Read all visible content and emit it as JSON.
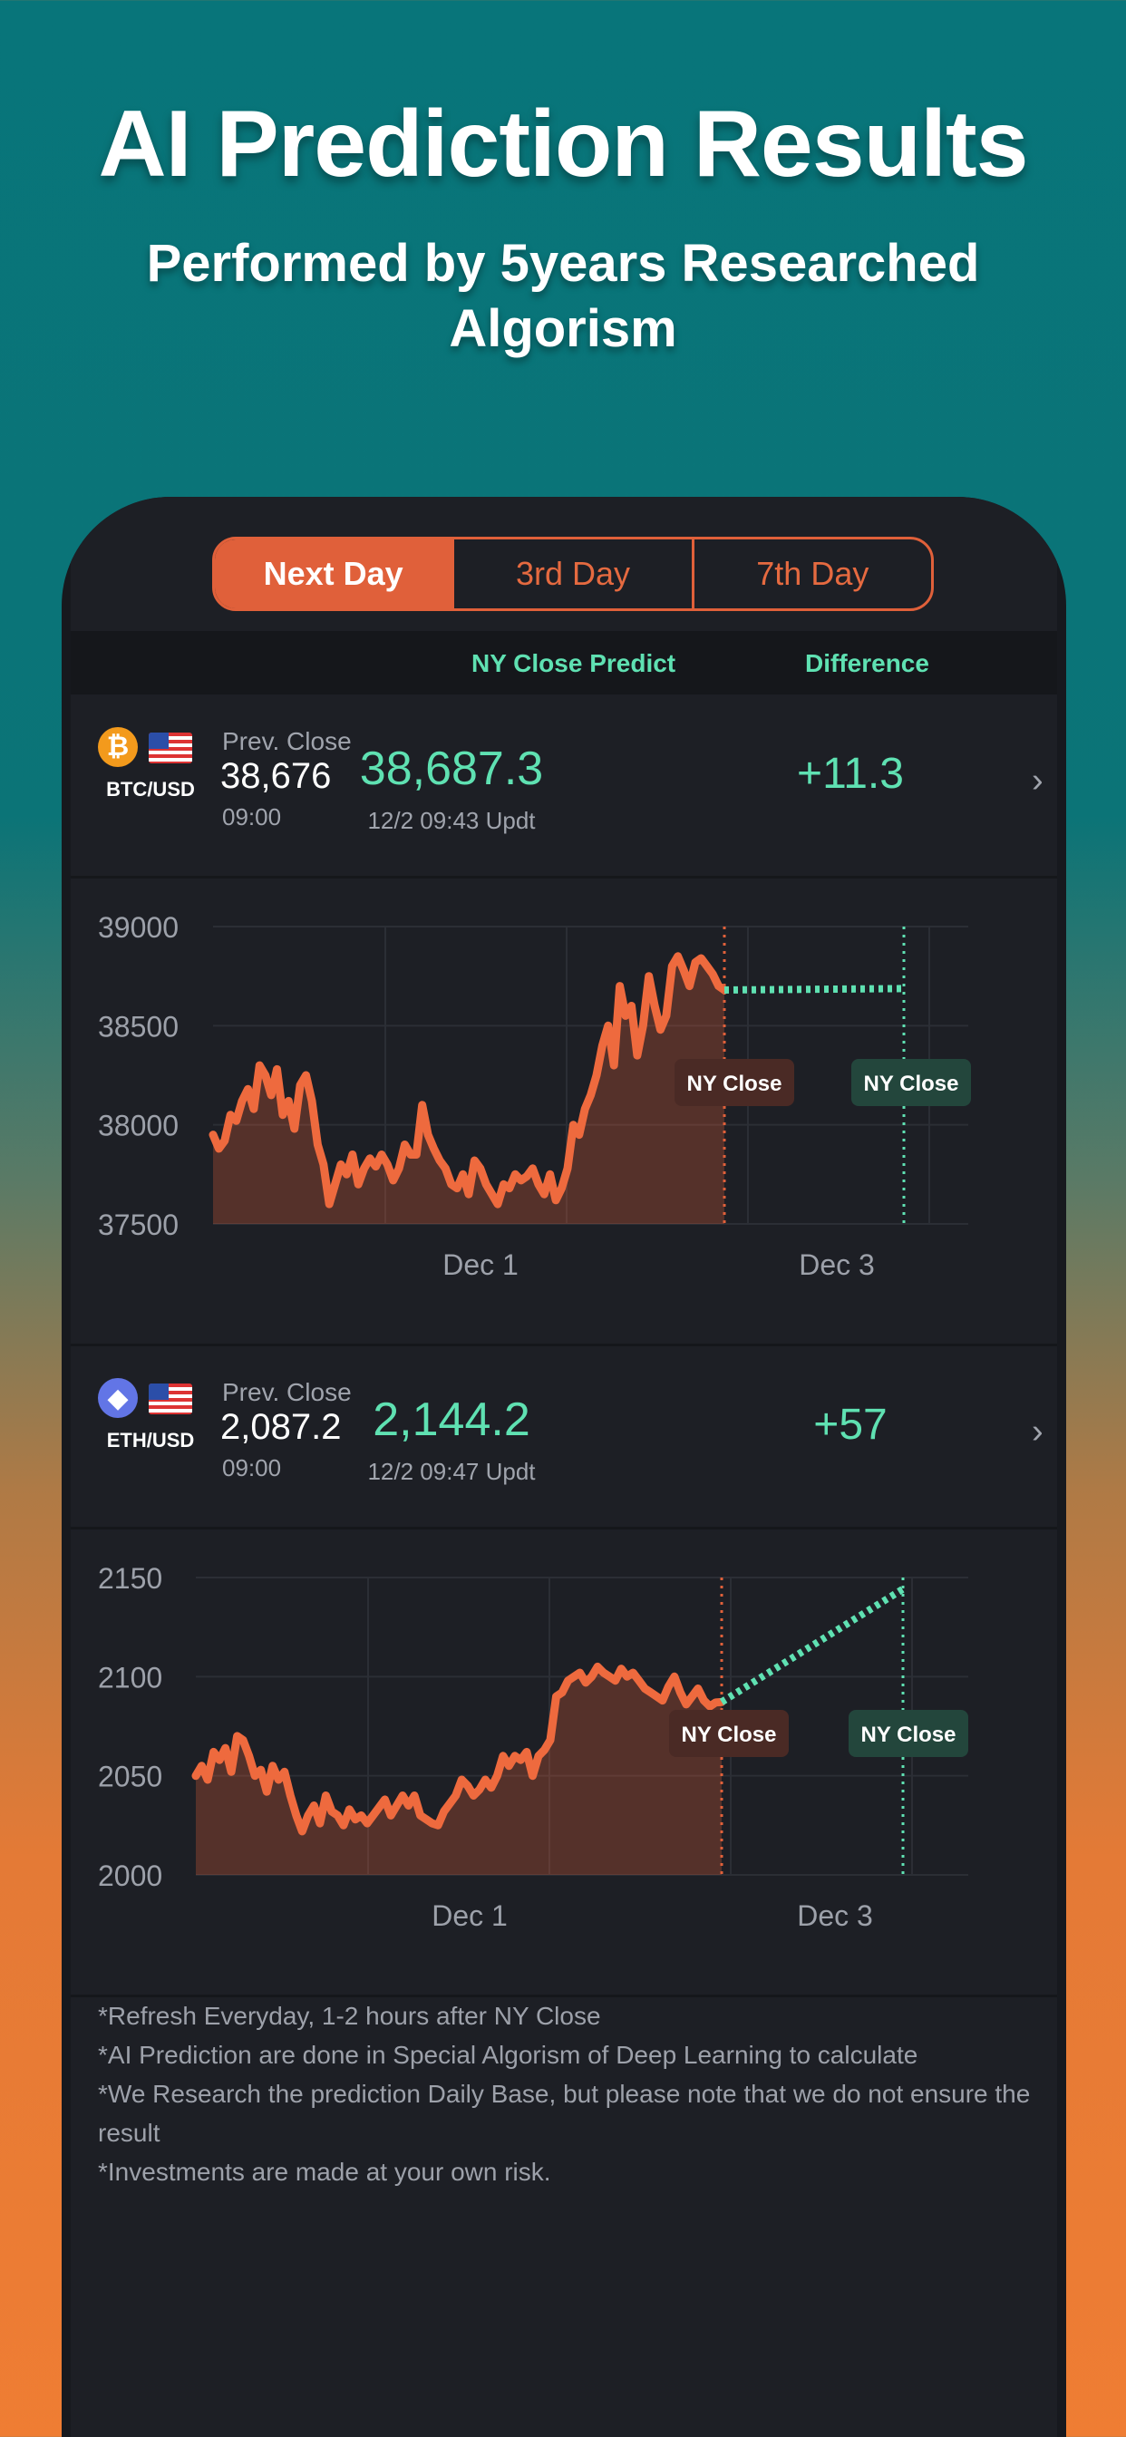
{
  "header": {
    "title": "AI Prediction Results",
    "subtitle": "Performed by 5years Researched Algorism"
  },
  "tabs": [
    {
      "label": "Next Day",
      "active": true
    },
    {
      "label": "3rd Day",
      "active": false
    },
    {
      "label": "7th Day",
      "active": false
    }
  ],
  "columns": {
    "predict": "NY Close Predict",
    "difference": "Difference"
  },
  "colors": {
    "accent": "#e0603a",
    "green": "#5fe1b2",
    "price_line": "#ee6a3e"
  },
  "assets": [
    {
      "icon": "bitcoin-icon",
      "pair": "BTC/USD",
      "prev_label": "Prev. Close",
      "prev_close": "38,676",
      "prev_time": "09:00",
      "predict": "38,687.3",
      "updated": "12/2 09:43 Updt",
      "difference": "+11.3",
      "chart_data": {
        "type": "line",
        "y_ticks": [
          "39000",
          "38500",
          "38000",
          "37500"
        ],
        "ylim": [
          37500,
          39000
        ],
        "x_ticks": [
          "Dec 1",
          "Dec 3"
        ],
        "annotations": [
          "NY Close",
          "NY Close"
        ],
        "series": [
          {
            "values": [
              37950,
              37880,
              37920,
              38050,
              38020,
              38120,
              38180,
              38080,
              38300,
              38250,
              38150,
              38280,
              38050,
              38120,
              37980,
              38200,
              38250,
              38120,
              37900,
              37800,
              37600,
              37700,
              37800,
              37750,
              37850,
              37700,
              37780,
              37830,
              37790,
              37850,
              37800,
              37720,
              37780,
              37900,
              37850,
              37850,
              38100,
              37950,
              37880,
              37820,
              37780,
              37700,
              37680,
              37750,
              37650,
              37820,
              37780,
              37700,
              37650,
              37600,
              37700,
              37680,
              37750,
              37720,
              37740,
              37780,
              37700,
              37650,
              37750,
              37620,
              37680,
              37780,
              38000,
              37950,
              38080,
              38150,
              38250,
              38400,
              38500,
              38300,
              38700,
              38550,
              38600,
              38350,
              38500,
              38750,
              38600,
              38480,
              38550,
              38800,
              38850,
              38780,
              38700,
              38820,
              38840,
              38800,
              38760,
              38700,
              38680
            ],
            "projected_value": 38687.3
          }
        ]
      }
    },
    {
      "icon": "ethereum-icon",
      "pair": "ETH/USD",
      "prev_label": "Prev. Close",
      "prev_close": "2,087.2",
      "prev_time": "09:00",
      "predict": "2,144.2",
      "updated": "12/2 09:47 Updt",
      "difference": "+57",
      "chart_data": {
        "type": "line",
        "y_ticks": [
          "2150",
          "2100",
          "2050",
          "2000"
        ],
        "ylim": [
          2000,
          2150
        ],
        "x_ticks": [
          "Dec 1",
          "Dec 3"
        ],
        "annotations": [
          "NY Close",
          "NY Close"
        ],
        "series": [
          {
            "values": [
              2050,
              2055,
              2048,
              2062,
              2058,
              2064,
              2052,
              2070,
              2068,
              2060,
              2050,
              2053,
              2042,
              2055,
              2048,
              2052,
              2040,
              2030,
              2022,
              2030,
              2035,
              2026,
              2040,
              2032,
              2030,
              2025,
              2033,
              2028,
              2030,
              2026,
              2030,
              2034,
              2038,
              2030,
              2035,
              2040,
              2035,
              2040,
              2030,
              2028,
              2026,
              2025,
              2032,
              2036,
              2040,
              2048,
              2045,
              2040,
              2043,
              2048,
              2044,
              2050,
              2060,
              2055,
              2060,
              2058,
              2062,
              2050,
              2060,
              2063,
              2068,
              2090,
              2092,
              2098,
              2100,
              2102,
              2097,
              2100,
              2105,
              2102,
              2100,
              2098,
              2104,
              2100,
              2102,
              2098,
              2094,
              2092,
              2090,
              2088,
              2095,
              2100,
              2092,
              2086,
              2090,
              2094,
              2088,
              2085,
              2087,
              2087.2
            ],
            "projected_value": 2144.2
          }
        ]
      }
    }
  ],
  "notes": [
    "*Refresh Everyday, 1-2 hours after NY Close",
    "*AI Prediction are done in Special Algorism of Deep Learning to calculate",
    "*We Research the prediction Daily Base, but please note that we do not ensure the result",
    "*Investments are made at your own risk."
  ]
}
